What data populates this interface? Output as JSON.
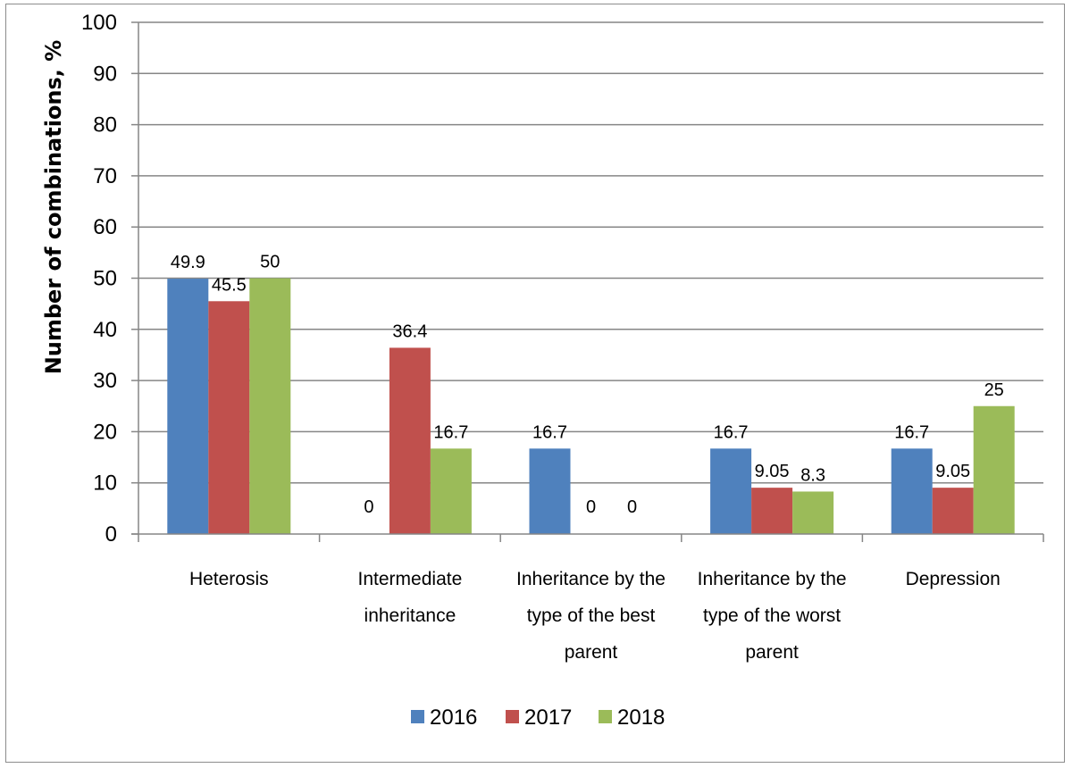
{
  "chart_data": {
    "type": "bar",
    "title": "",
    "xlabel": "",
    "ylabel": "Number of combinations,  %",
    "ylim": [
      0,
      100
    ],
    "yticks": [
      0,
      10,
      20,
      30,
      40,
      50,
      60,
      70,
      80,
      90,
      100
    ],
    "grid": true,
    "legend_position": "bottom",
    "categories": [
      [
        "Heterosis"
      ],
      [
        "Intermediate",
        "inheritance"
      ],
      [
        "Inheritance by the",
        "type of the best",
        "parent"
      ],
      [
        "Inheritance by the",
        "type of the worst",
        "parent"
      ],
      [
        "Depression"
      ]
    ],
    "series": [
      {
        "name": "2016",
        "color": "#4F81BD",
        "values": [
          49.9,
          0,
          16.7,
          16.7,
          16.7
        ],
        "labels": [
          "49.9",
          "0",
          "16.7",
          "16.7",
          "16.7"
        ]
      },
      {
        "name": "2017",
        "color": "#C0504D",
        "values": [
          45.5,
          36.4,
          0,
          9.05,
          9.05
        ],
        "labels": [
          "45.5",
          "36.4",
          "0",
          "9.05",
          "9.05"
        ]
      },
      {
        "name": "2018",
        "color": "#9BBB59",
        "values": [
          50,
          16.7,
          0,
          8.3,
          25
        ],
        "labels": [
          "50",
          "16.7",
          "0",
          "8.3",
          "25"
        ]
      }
    ]
  }
}
